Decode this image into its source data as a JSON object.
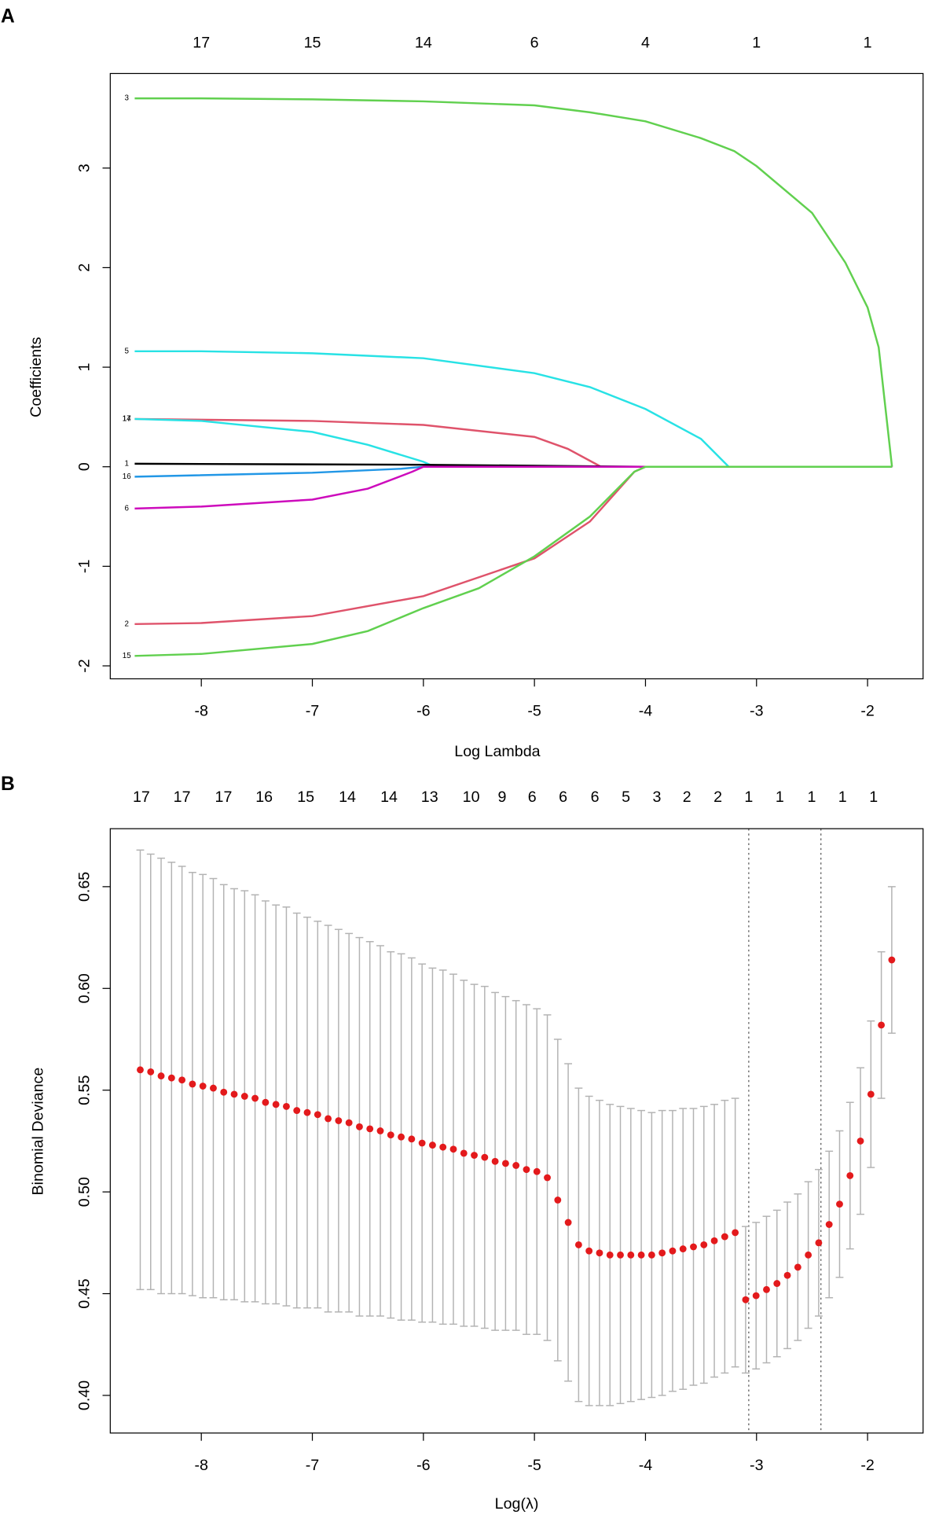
{
  "chart_data": [
    {
      "type": "line",
      "panel_label": "A",
      "xlabel": "Log Lambda",
      "ylabel": "Coefficients",
      "xlim": [
        -8.82,
        -1.5
      ],
      "ylim": [
        -2.13,
        3.95
      ],
      "xticks": [
        -8,
        -7,
        -6,
        -5,
        -4,
        -3,
        -2
      ],
      "yticks": [
        -2,
        -1,
        0,
        1,
        2,
        3
      ],
      "x2ticks": [
        {
          "value": -8,
          "label": "17"
        },
        {
          "value": -7,
          "label": "15"
        },
        {
          "value": -6,
          "label": "14"
        },
        {
          "value": -5,
          "label": "6"
        },
        {
          "value": -4,
          "label": "4"
        },
        {
          "value": -3,
          "label": "1"
        },
        {
          "value": -2,
          "label": "1"
        }
      ],
      "series": [
        {
          "name": "3",
          "color": "#61d04f",
          "x": [
            -8.6,
            -8,
            -7,
            -6,
            -5,
            -4.5,
            -4,
            -3.5,
            -3.2,
            -3,
            -2.5,
            -2.2,
            -2,
            -1.9,
            -1.78
          ],
          "values": [
            3.7,
            3.7,
            3.69,
            3.67,
            3.63,
            3.56,
            3.47,
            3.3,
            3.17,
            3.02,
            2.55,
            2.05,
            1.6,
            1.2,
            0
          ]
        },
        {
          "name": "5",
          "color": "#28e2e5",
          "x": [
            -8.6,
            -8,
            -7,
            -6,
            -5,
            -4.5,
            -4,
            -3.5,
            -3.25,
            -1.78
          ],
          "values": [
            1.16,
            1.16,
            1.14,
            1.09,
            0.94,
            0.8,
            0.58,
            0.28,
            0,
            0
          ]
        },
        {
          "name": "17",
          "color": "#df536b",
          "x": [
            -8.6,
            -7,
            -6,
            -5,
            -4.7,
            -4.4,
            -1.78
          ],
          "values": [
            0.48,
            0.46,
            0.42,
            0.3,
            0.18,
            0,
            0
          ]
        },
        {
          "name": "14",
          "color": "#28e2e5",
          "x": [
            -8.6,
            -8,
            -7,
            -6.5,
            -6,
            -5.9,
            -1.78
          ],
          "values": [
            0.48,
            0.46,
            0.35,
            0.22,
            0.05,
            0,
            0
          ]
        },
        {
          "name": "1",
          "color": "#000000",
          "x": [
            -8.6,
            -6,
            -4,
            -1.78
          ],
          "values": [
            0.03,
            0.02,
            0,
            0
          ]
        },
        {
          "name": "16",
          "color": "#2297e6",
          "x": [
            -8.6,
            -7,
            -6.2,
            -6,
            -1.78
          ],
          "values": [
            -0.1,
            -0.06,
            -0.02,
            0,
            0
          ]
        },
        {
          "name": "6",
          "color": "#cd0bbc",
          "x": [
            -8.6,
            -8,
            -7,
            -6.5,
            -6.1,
            -6,
            -1.78
          ],
          "values": [
            -0.42,
            -0.4,
            -0.33,
            -0.22,
            -0.05,
            0,
            0
          ]
        },
        {
          "name": "2",
          "color": "#df536b",
          "x": [
            -8.6,
            -8,
            -7,
            -6,
            -5,
            -4.5,
            -4.1,
            -4,
            -1.78
          ],
          "values": [
            -1.58,
            -1.57,
            -1.5,
            -1.3,
            -0.92,
            -0.55,
            -0.05,
            0,
            0
          ]
        },
        {
          "name": "15",
          "color": "#61d04f",
          "x": [
            -8.6,
            -8,
            -7,
            -6.5,
            -6,
            -5.5,
            -5,
            -4.5,
            -4.1,
            -4,
            -1.78
          ],
          "values": [
            -1.9,
            -1.88,
            -1.78,
            -1.65,
            -1.42,
            -1.22,
            -0.9,
            -0.5,
            -0.05,
            0,
            0
          ]
        }
      ]
    },
    {
      "type": "scatter",
      "panel_label": "B",
      "xlabel": "Log(λ)",
      "ylabel": "Binomial Deviance",
      "xlim": [
        -8.82,
        -1.5
      ],
      "ylim": [
        0.3815,
        0.6785
      ],
      "xticks": [
        -8,
        -7,
        -6,
        -5,
        -4,
        -3,
        -2
      ],
      "yticks": [
        {
          "value": 0.4,
          "label": "0.40"
        },
        0.45,
        {
          "value": 0.5,
          "label": "0.50"
        },
        0.55,
        {
          "value": 0.6,
          "label": "0.60"
        },
        0.65
      ],
      "x2ticks": [
        {
          "value": -8.54,
          "label": "17"
        },
        {
          "value": -8.174,
          "label": "17"
        },
        {
          "value": -7.8,
          "label": "17"
        },
        {
          "value": -7.434,
          "label": "16"
        },
        {
          "value": -7.059,
          "label": "15"
        },
        {
          "value": -6.685,
          "label": "14"
        },
        {
          "value": -6.31,
          "label": "14"
        },
        {
          "value": -5.944,
          "label": "13"
        },
        {
          "value": -5.57,
          "label": "10"
        },
        {
          "value": -5.291,
          "label": "9"
        },
        {
          "value": -5.021,
          "label": "6"
        },
        {
          "value": -4.742,
          "label": "6"
        },
        {
          "value": -4.455,
          "label": "6"
        },
        {
          "value": -4.176,
          "label": "5"
        },
        {
          "value": -3.897,
          "label": "3"
        },
        {
          "value": -3.627,
          "label": "2"
        },
        {
          "value": -3.348,
          "label": "2"
        },
        {
          "value": -3.07,
          "label": "1"
        },
        {
          "value": -2.791,
          "label": "1"
        },
        {
          "value": -2.503,
          "label": "1"
        },
        {
          "value": -2.225,
          "label": "1"
        },
        {
          "value": -1.946,
          "label": "1"
        }
      ],
      "color": "#e31a1c",
      "error_color": "#b3b3b3",
      "vlines": [
        -3.07,
        -2.42
      ],
      "x": [
        -8.55,
        -8.456,
        -8.362,
        -8.268,
        -8.174,
        -8.08,
        -7.986,
        -7.892,
        -7.798,
        -7.704,
        -7.61,
        -7.516,
        -7.422,
        -7.328,
        -7.234,
        -7.14,
        -7.046,
        -6.952,
        -6.858,
        -6.764,
        -6.67,
        -6.576,
        -6.482,
        -6.388,
        -6.294,
        -6.2,
        -6.106,
        -6.012,
        -5.918,
        -5.824,
        -5.73,
        -5.636,
        -5.542,
        -5.448,
        -5.354,
        -5.26,
        -5.166,
        -5.072,
        -4.978,
        -4.884,
        -4.79,
        -4.696,
        -4.602,
        -4.508,
        -4.414,
        -4.32,
        -4.226,
        -4.132,
        -4.038,
        -3.944,
        -3.85,
        -3.756,
        -3.662,
        -3.568,
        -3.474,
        -3.38,
        -3.286,
        -3.192,
        -3.098,
        -3.004,
        -2.91,
        -2.816,
        -2.722,
        -2.628,
        -2.534,
        -2.44,
        -2.346,
        -2.252,
        -2.158,
        -2.064,
        -1.97,
        -1.876,
        -1.782
      ],
      "values": [
        0.56,
        0.559,
        0.557,
        0.556,
        0.555,
        0.553,
        0.552,
        0.551,
        0.549,
        0.548,
        0.547,
        0.546,
        0.544,
        0.543,
        0.542,
        0.54,
        0.539,
        0.538,
        0.536,
        0.535,
        0.534,
        0.532,
        0.531,
        0.53,
        0.528,
        0.527,
        0.526,
        0.524,
        0.523,
        0.522,
        0.521,
        0.519,
        0.518,
        0.517,
        0.515,
        0.514,
        0.513,
        0.511,
        0.51,
        0.507,
        0.496,
        0.485,
        0.474,
        0.471,
        0.47,
        0.469,
        0.469,
        0.469,
        0.469,
        0.469,
        0.47,
        0.471,
        0.472,
        0.473,
        0.474,
        0.476,
        0.478,
        0.48,
        0.447,
        0.449,
        0.452,
        0.455,
        0.459,
        0.463,
        0.469,
        0.475,
        0.484,
        0.494,
        0.508,
        0.525,
        0.548,
        0.582,
        0.614
      ],
      "errors": [
        0.108,
        0.107,
        0.107,
        0.106,
        0.105,
        0.104,
        0.104,
        0.103,
        0.102,
        0.101,
        0.101,
        0.1,
        0.099,
        0.098,
        0.098,
        0.097,
        0.096,
        0.095,
        0.095,
        0.094,
        0.093,
        0.093,
        0.092,
        0.091,
        0.09,
        0.09,
        0.089,
        0.088,
        0.087,
        0.087,
        0.086,
        0.085,
        0.084,
        0.084,
        0.083,
        0.082,
        0.081,
        0.081,
        0.08,
        0.08,
        0.079,
        0.078,
        0.077,
        0.076,
        0.075,
        0.074,
        0.073,
        0.072,
        0.071,
        0.07,
        0.07,
        0.069,
        0.069,
        0.068,
        0.068,
        0.067,
        0.067,
        0.066,
        0.036,
        0.036,
        0.036,
        0.036,
        0.036,
        0.036,
        0.036,
        0.036,
        0.036,
        0.036,
        0.036,
        0.036,
        0.036,
        0.036,
        0.036
      ]
    }
  ]
}
